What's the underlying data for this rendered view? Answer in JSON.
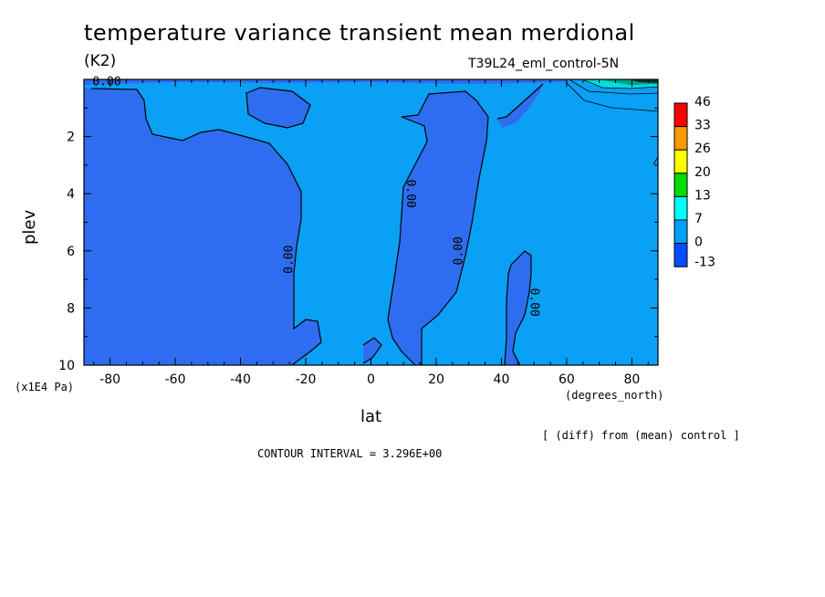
{
  "chart_data": {
    "type": "contour",
    "title": "temperature variance transient mean merdional",
    "units": "(K2)",
    "run_label": "T39L24_eml_control-5N",
    "xlabel": "lat",
    "xunits": "(degrees_north)",
    "ylabel": "plev",
    "yunits": "(x1E4 Pa)",
    "xlim": [
      -88,
      88
    ],
    "ylim": [
      10,
      0
    ],
    "x_ticks": [
      -80,
      -60,
      -40,
      -20,
      0,
      20,
      40,
      60,
      80
    ],
    "y_ticks": [
      2,
      4,
      6,
      8,
      10
    ],
    "x_tick_labels": [
      "-80",
      "-60",
      "-40",
      "-20",
      "0",
      "20",
      "40",
      "60",
      "80"
    ],
    "y_tick_labels": [
      "2",
      "4",
      "6",
      "8",
      "10"
    ],
    "colorbar": {
      "levels": [
        "46",
        "33",
        "26",
        "20",
        "13",
        "7",
        "0",
        "-13"
      ],
      "colors": [
        "#ff0000",
        "#ff9900",
        "#ffff00",
        "#00dd00",
        "#00ffff",
        "#00a0ff",
        "#0050ff"
      ]
    },
    "contour_labels": [
      "0.00",
      "0.00",
      "0.00",
      "0.00",
      "0.00"
    ],
    "note": "[ (diff) from (mean) control ]",
    "contour_interval": "CONTOUR INTERVAL = 3.296E+00",
    "colors": {
      "negative_fill": "#2f6df0",
      "near_zero_fill": "#0aa0f5",
      "strong_fill": "#00dddd"
    }
  }
}
